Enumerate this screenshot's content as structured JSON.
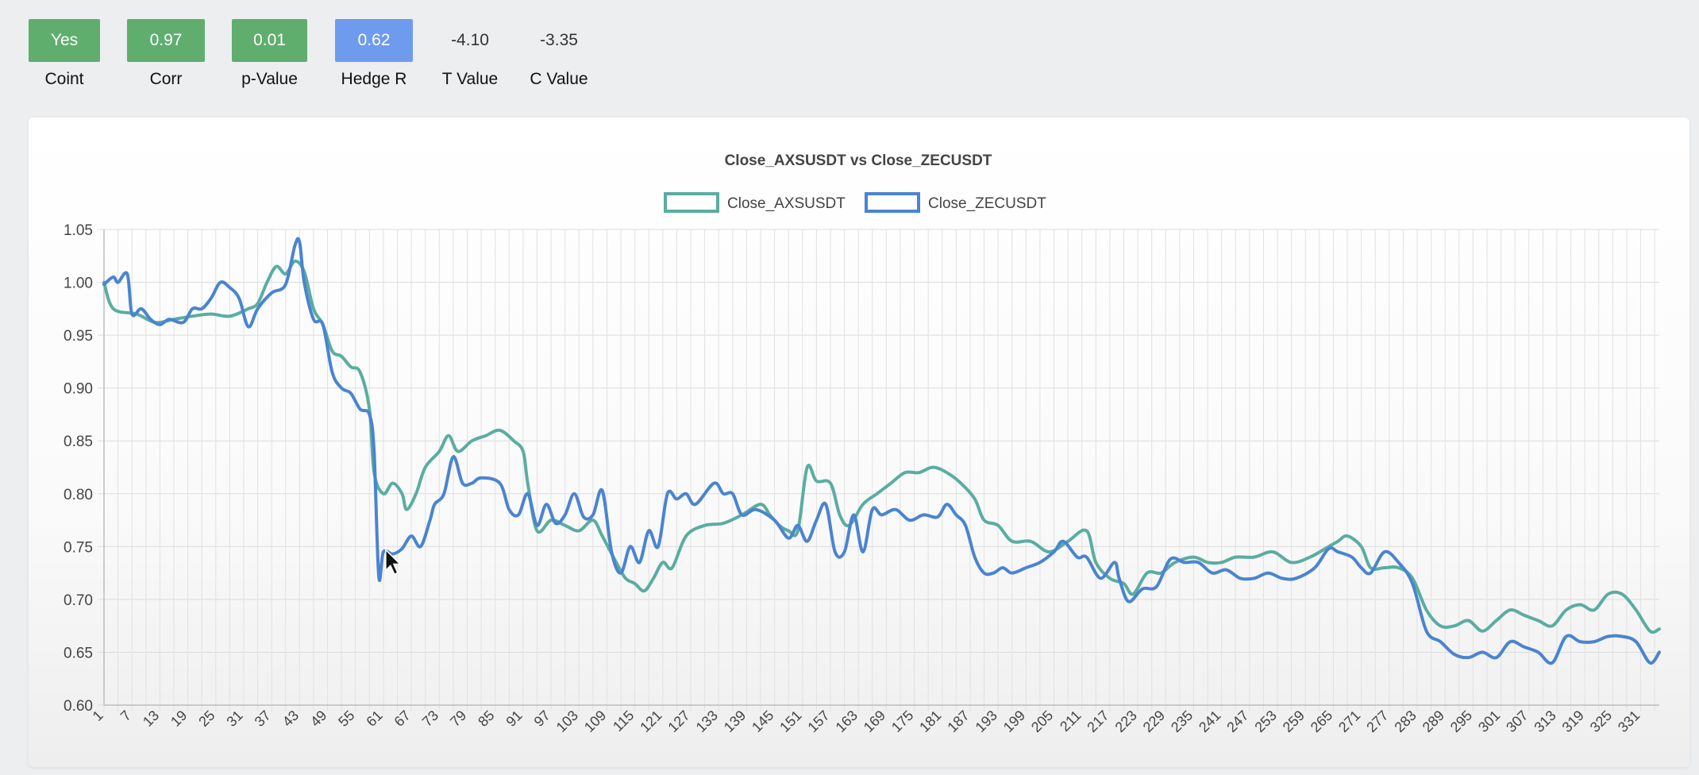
{
  "stats": [
    {
      "value": "Yes",
      "label": "Coint",
      "color": "#5fae6e",
      "boxed": true
    },
    {
      "value": "0.97",
      "label": "Corr",
      "color": "#5fae6e",
      "boxed": true
    },
    {
      "value": "0.01",
      "label": "p-Value",
      "color": "#5fae6e",
      "boxed": true
    },
    {
      "value": "0.62",
      "label": "Hedge R",
      "color": "#6f9bef",
      "boxed": true
    },
    {
      "value": "-4.10",
      "label": "T Value",
      "color": "",
      "boxed": false
    },
    {
      "value": "-3.35",
      "label": "C Value",
      "color": "",
      "boxed": false
    }
  ],
  "chart_data": {
    "type": "line",
    "title": "Close_AXSUSDT vs Close_ZECUSDT",
    "xlabel": "",
    "ylabel": "",
    "ylim": [
      0.6,
      1.05
    ],
    "yticks": [
      0.6,
      0.65,
      0.7,
      0.75,
      0.8,
      0.85,
      0.9,
      0.95,
      1.0,
      1.05
    ],
    "x_range": [
      1,
      335
    ],
    "xtick_step": 6,
    "grid": true,
    "legend": "top-center",
    "series": [
      {
        "name": "Close_AXSUSDT",
        "color": "#5aada0",
        "points": [
          [
            1,
            1.0
          ],
          [
            3,
            0.975
          ],
          [
            8,
            0.97
          ],
          [
            12,
            0.962
          ],
          [
            16,
            0.965
          ],
          [
            20,
            0.968
          ],
          [
            24,
            0.97
          ],
          [
            28,
            0.968
          ],
          [
            32,
            0.975
          ],
          [
            34,
            0.98
          ],
          [
            36,
            1.0
          ],
          [
            38,
            1.015
          ],
          [
            40,
            1.008
          ],
          [
            42,
            1.02
          ],
          [
            44,
            1.01
          ],
          [
            46,
            0.975
          ],
          [
            48,
            0.96
          ],
          [
            50,
            0.935
          ],
          [
            52,
            0.93
          ],
          [
            54,
            0.92
          ],
          [
            56,
            0.915
          ],
          [
            58,
            0.88
          ],
          [
            59,
            0.82
          ],
          [
            61,
            0.8
          ],
          [
            63,
            0.81
          ],
          [
            65,
            0.8
          ],
          [
            66,
            0.785
          ],
          [
            68,
            0.8
          ],
          [
            70,
            0.825
          ],
          [
            73,
            0.84
          ],
          [
            75,
            0.855
          ],
          [
            77,
            0.84
          ],
          [
            80,
            0.85
          ],
          [
            83,
            0.855
          ],
          [
            86,
            0.86
          ],
          [
            89,
            0.85
          ],
          [
            91,
            0.84
          ],
          [
            92,
            0.81
          ],
          [
            94,
            0.765
          ],
          [
            97,
            0.775
          ],
          [
            100,
            0.77
          ],
          [
            103,
            0.765
          ],
          [
            106,
            0.775
          ],
          [
            108,
            0.76
          ],
          [
            111,
            0.735
          ],
          [
            113,
            0.72
          ],
          [
            115,
            0.715
          ],
          [
            117,
            0.708
          ],
          [
            119,
            0.72
          ],
          [
            121,
            0.735
          ],
          [
            123,
            0.73
          ],
          [
            126,
            0.76
          ],
          [
            130,
            0.77
          ],
          [
            134,
            0.772
          ],
          [
            138,
            0.78
          ],
          [
            142,
            0.79
          ],
          [
            144,
            0.78
          ],
          [
            146,
            0.77
          ],
          [
            148,
            0.765
          ],
          [
            150,
            0.765
          ],
          [
            152,
            0.825
          ],
          [
            154,
            0.812
          ],
          [
            157,
            0.81
          ],
          [
            159,
            0.78
          ],
          [
            161,
            0.77
          ],
          [
            164,
            0.79
          ],
          [
            167,
            0.8
          ],
          [
            170,
            0.81
          ],
          [
            173,
            0.82
          ],
          [
            176,
            0.82
          ],
          [
            179,
            0.825
          ],
          [
            182,
            0.82
          ],
          [
            185,
            0.81
          ],
          [
            188,
            0.795
          ],
          [
            190,
            0.775
          ],
          [
            193,
            0.77
          ],
          [
            196,
            0.755
          ],
          [
            200,
            0.755
          ],
          [
            204,
            0.745
          ],
          [
            208,
            0.755
          ],
          [
            212,
            0.765
          ],
          [
            214,
            0.735
          ],
          [
            217,
            0.72
          ],
          [
            220,
            0.715
          ],
          [
            222,
            0.705
          ],
          [
            225,
            0.725
          ],
          [
            228,
            0.725
          ],
          [
            231,
            0.735
          ],
          [
            235,
            0.74
          ],
          [
            238,
            0.735
          ],
          [
            241,
            0.735
          ],
          [
            244,
            0.74
          ],
          [
            248,
            0.74
          ],
          [
            252,
            0.745
          ],
          [
            256,
            0.735
          ],
          [
            260,
            0.74
          ],
          [
            264,
            0.75
          ],
          [
            266,
            0.755
          ],
          [
            268,
            0.76
          ],
          [
            271,
            0.75
          ],
          [
            273,
            0.73
          ],
          [
            276,
            0.73
          ],
          [
            279,
            0.73
          ],
          [
            282,
            0.72
          ],
          [
            285,
            0.69
          ],
          [
            288,
            0.675
          ],
          [
            291,
            0.675
          ],
          [
            294,
            0.68
          ],
          [
            297,
            0.67
          ],
          [
            300,
            0.68
          ],
          [
            303,
            0.69
          ],
          [
            306,
            0.685
          ],
          [
            309,
            0.68
          ],
          [
            312,
            0.675
          ],
          [
            315,
            0.69
          ],
          [
            318,
            0.695
          ],
          [
            321,
            0.69
          ],
          [
            324,
            0.705
          ],
          [
            327,
            0.705
          ],
          [
            330,
            0.69
          ],
          [
            333,
            0.67
          ],
          [
            335,
            0.672
          ]
        ]
      },
      {
        "name": "Close_ZECUSDT",
        "color": "#4a84d0",
        "points": [
          [
            1,
            0.998
          ],
          [
            3,
            1.005
          ],
          [
            4,
            1.0
          ],
          [
            6,
            1.008
          ],
          [
            7,
            0.97
          ],
          [
            9,
            0.975
          ],
          [
            11,
            0.965
          ],
          [
            13,
            0.96
          ],
          [
            15,
            0.965
          ],
          [
            18,
            0.962
          ],
          [
            20,
            0.975
          ],
          [
            22,
            0.975
          ],
          [
            24,
            0.985
          ],
          [
            26,
            1.0
          ],
          [
            28,
            0.995
          ],
          [
            30,
            0.985
          ],
          [
            32,
            0.958
          ],
          [
            34,
            0.975
          ],
          [
            37,
            0.99
          ],
          [
            40,
            0.998
          ],
          [
            42,
            1.035
          ],
          [
            43,
            1.038
          ],
          [
            44,
            1.0
          ],
          [
            46,
            0.965
          ],
          [
            48,
            0.96
          ],
          [
            50,
            0.915
          ],
          [
            52,
            0.9
          ],
          [
            54,
            0.895
          ],
          [
            56,
            0.88
          ],
          [
            58,
            0.875
          ],
          [
            59,
            0.84
          ],
          [
            60,
            0.722
          ],
          [
            61,
            0.745
          ],
          [
            63,
            0.743
          ],
          [
            65,
            0.748
          ],
          [
            67,
            0.76
          ],
          [
            69,
            0.75
          ],
          [
            71,
            0.775
          ],
          [
            72,
            0.79
          ],
          [
            74,
            0.8
          ],
          [
            76,
            0.835
          ],
          [
            78,
            0.81
          ],
          [
            80,
            0.81
          ],
          [
            82,
            0.815
          ],
          [
            86,
            0.81
          ],
          [
            88,
            0.785
          ],
          [
            90,
            0.78
          ],
          [
            92,
            0.8
          ],
          [
            94,
            0.77
          ],
          [
            96,
            0.79
          ],
          [
            98,
            0.772
          ],
          [
            100,
            0.78
          ],
          [
            102,
            0.8
          ],
          [
            104,
            0.778
          ],
          [
            106,
            0.78
          ],
          [
            108,
            0.803
          ],
          [
            110,
            0.745
          ],
          [
            112,
            0.725
          ],
          [
            114,
            0.75
          ],
          [
            116,
            0.735
          ],
          [
            118,
            0.765
          ],
          [
            120,
            0.75
          ],
          [
            122,
            0.8
          ],
          [
            124,
            0.795
          ],
          [
            126,
            0.8
          ],
          [
            128,
            0.79
          ],
          [
            132,
            0.81
          ],
          [
            134,
            0.8
          ],
          [
            136,
            0.8
          ],
          [
            138,
            0.78
          ],
          [
            141,
            0.785
          ],
          [
            145,
            0.775
          ],
          [
            148,
            0.758
          ],
          [
            150,
            0.77
          ],
          [
            152,
            0.755
          ],
          [
            154,
            0.775
          ],
          [
            156,
            0.79
          ],
          [
            158,
            0.745
          ],
          [
            160,
            0.745
          ],
          [
            162,
            0.78
          ],
          [
            164,
            0.745
          ],
          [
            166,
            0.785
          ],
          [
            168,
            0.78
          ],
          [
            171,
            0.785
          ],
          [
            174,
            0.775
          ],
          [
            177,
            0.78
          ],
          [
            180,
            0.778
          ],
          [
            182,
            0.79
          ],
          [
            184,
            0.78
          ],
          [
            186,
            0.77
          ],
          [
            188,
            0.74
          ],
          [
            190,
            0.725
          ],
          [
            192,
            0.725
          ],
          [
            194,
            0.73
          ],
          [
            196,
            0.725
          ],
          [
            199,
            0.73
          ],
          [
            202,
            0.735
          ],
          [
            205,
            0.745
          ],
          [
            207,
            0.755
          ],
          [
            210,
            0.74
          ],
          [
            212,
            0.74
          ],
          [
            215,
            0.72
          ],
          [
            218,
            0.735
          ],
          [
            219,
            0.72
          ],
          [
            221,
            0.698
          ],
          [
            224,
            0.71
          ],
          [
            227,
            0.712
          ],
          [
            230,
            0.738
          ],
          [
            233,
            0.735
          ],
          [
            236,
            0.735
          ],
          [
            239,
            0.725
          ],
          [
            242,
            0.728
          ],
          [
            245,
            0.72
          ],
          [
            248,
            0.72
          ],
          [
            251,
            0.725
          ],
          [
            254,
            0.72
          ],
          [
            257,
            0.72
          ],
          [
            261,
            0.73
          ],
          [
            264,
            0.748
          ],
          [
            266,
            0.745
          ],
          [
            269,
            0.74
          ],
          [
            271,
            0.73
          ],
          [
            273,
            0.725
          ],
          [
            276,
            0.745
          ],
          [
            279,
            0.735
          ],
          [
            282,
            0.715
          ],
          [
            285,
            0.67
          ],
          [
            288,
            0.66
          ],
          [
            291,
            0.648
          ],
          [
            294,
            0.645
          ],
          [
            297,
            0.65
          ],
          [
            300,
            0.645
          ],
          [
            303,
            0.66
          ],
          [
            306,
            0.655
          ],
          [
            309,
            0.65
          ],
          [
            312,
            0.64
          ],
          [
            315,
            0.665
          ],
          [
            318,
            0.66
          ],
          [
            321,
            0.66
          ],
          [
            324,
            0.665
          ],
          [
            327,
            0.665
          ],
          [
            330,
            0.66
          ],
          [
            333,
            0.64
          ],
          [
            335,
            0.65
          ]
        ]
      }
    ]
  }
}
